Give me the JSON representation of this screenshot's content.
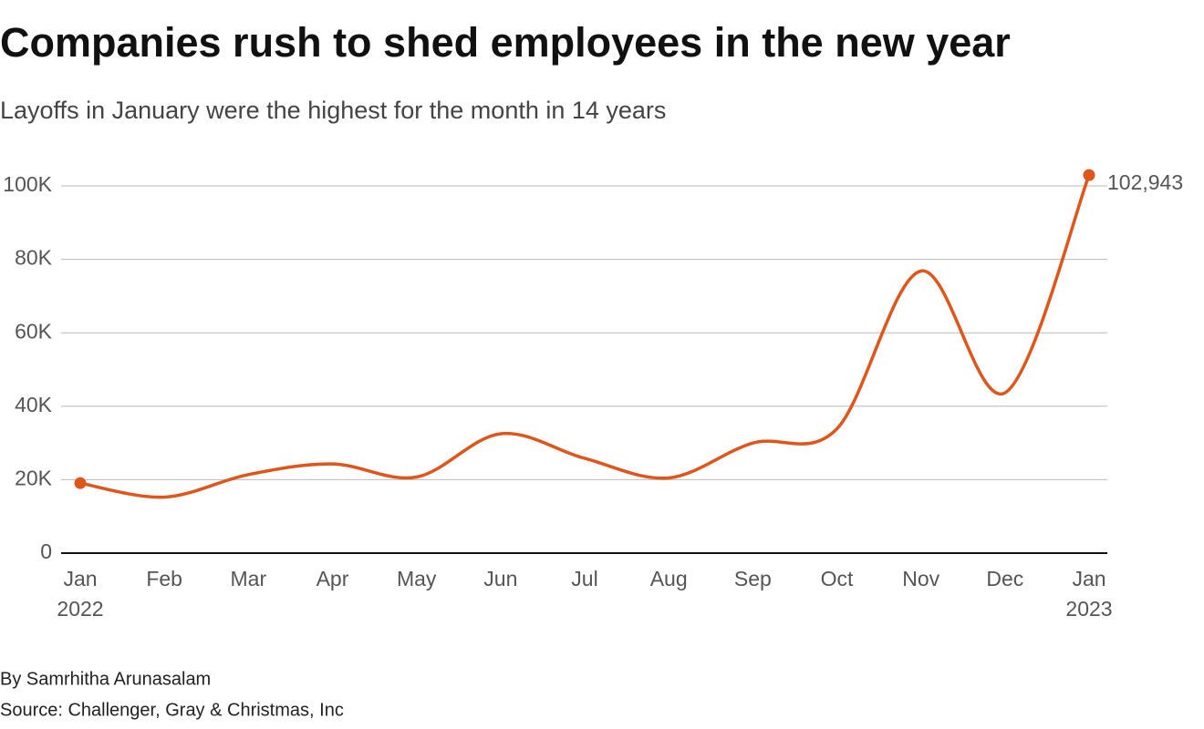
{
  "chart_data": {
    "type": "line",
    "title": "Companies rush to shed employees in the new year",
    "subtitle": "Layoffs in January were the highest for the month in 14 years",
    "categories": [
      "Jan",
      "Feb",
      "Mar",
      "Apr",
      "May",
      "Jun",
      "Jul",
      "Aug",
      "Sep",
      "Oct",
      "Nov",
      "Dec",
      "Jan"
    ],
    "x_sublabels": [
      "2022",
      null,
      null,
      null,
      null,
      null,
      null,
      null,
      null,
      null,
      null,
      null,
      "2023"
    ],
    "series": [
      {
        "name": "Layoffs",
        "color": "#e0561a",
        "values": [
          19064,
          15245,
          21387,
          24286,
          20712,
          32517,
          25810,
          20485,
          29989,
          33843,
          76835,
          43651,
          102943
        ],
        "value_labels": [
          null,
          null,
          null,
          null,
          null,
          null,
          null,
          null,
          null,
          null,
          null,
          null,
          "102,943"
        ]
      }
    ],
    "ylim": [
      0,
      100000
    ],
    "yticks": [
      0,
      {
        "value": 20000,
        "label": "20K"
      },
      {
        "value": 40000,
        "label": "40K"
      },
      {
        "value": 60000,
        "label": "60K"
      },
      {
        "value": 80000,
        "label": "80K"
      },
      {
        "value": 100000,
        "label": "100K"
      }
    ],
    "grid": true,
    "byline": "By Samrhitha Arunasalam",
    "source": "Source: Challenger, Gray & Christmas, Inc"
  }
}
